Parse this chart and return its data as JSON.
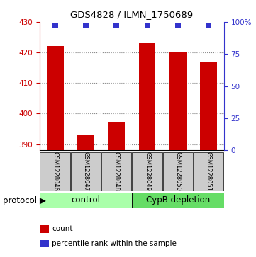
{
  "title": "GDS4828 / ILMN_1750689",
  "samples": [
    "GSM1228046",
    "GSM1228047",
    "GSM1228048",
    "GSM1228049",
    "GSM1228050",
    "GSM1228051"
  ],
  "bar_values": [
    422,
    393,
    397,
    423,
    420,
    417
  ],
  "percentile_values": [
    97,
    97,
    97,
    97,
    97,
    97
  ],
  "ylim_left": [
    388,
    430
  ],
  "ylim_right": [
    0,
    100
  ],
  "yticks_left": [
    390,
    400,
    410,
    420,
    430
  ],
  "yticks_right": [
    0,
    25,
    50,
    75,
    100
  ],
  "yticklabels_right": [
    "0",
    "25",
    "50",
    "75",
    "100%"
  ],
  "bar_color": "#cc0000",
  "dot_color": "#3333cc",
  "control_label": "control",
  "treatment_label": "CypB depletion",
  "control_color": "#aaffaa",
  "treatment_color": "#66dd66",
  "protocol_label": "protocol",
  "legend_count": "count",
  "legend_percentile": "percentile rank within the sample",
  "bar_width": 0.55,
  "dot_size": 28,
  "left_tick_color": "#cc0000",
  "right_tick_color": "#3333cc",
  "grid_color": "#888888",
  "sample_box_color": "#cccccc",
  "bg_color": "#ffffff"
}
